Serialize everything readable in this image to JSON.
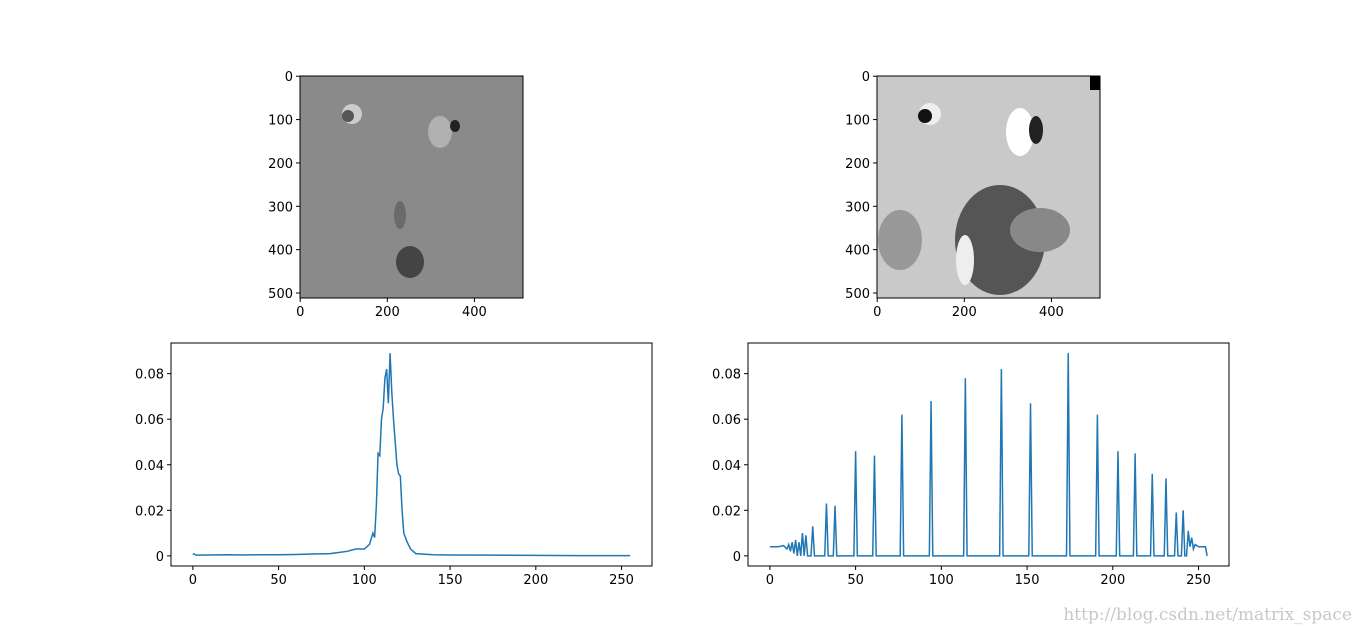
{
  "chart_data": [
    {
      "type": "image",
      "xlim": [
        -0.5,
        511.5
      ],
      "ylim": [
        511.5,
        -0.5
      ],
      "xticks": [
        0,
        200,
        400
      ],
      "yticks": [
        0,
        100,
        200,
        300,
        400,
        500
      ]
    },
    {
      "type": "image",
      "xlim": [
        -0.5,
        511.5
      ],
      "ylim": [
        511.5,
        -0.5
      ],
      "xticks": [
        0,
        200,
        400
      ],
      "yticks": [
        0,
        100,
        200,
        300,
        400,
        500
      ]
    },
    {
      "type": "line",
      "color": "#1f77b4",
      "x": [
        0,
        2,
        10,
        20,
        30,
        40,
        50,
        60,
        70,
        80,
        85,
        90,
        95,
        100,
        103,
        105,
        106,
        107,
        108,
        109,
        110,
        111,
        112,
        113,
        114,
        115,
        116,
        117,
        118,
        119,
        120,
        121,
        122,
        123,
        125,
        127,
        130,
        140,
        150,
        175,
        200,
        225,
        255
      ],
      "values": [
        0.001,
        0.0003,
        0.0004,
        0.0005,
        0.0004,
        0.0005,
        0.0005,
        0.0006,
        0.0008,
        0.001,
        0.0015,
        0.002,
        0.003,
        0.003,
        0.005,
        0.01,
        0.008,
        0.022,
        0.045,
        0.044,
        0.06,
        0.065,
        0.078,
        0.082,
        0.067,
        0.089,
        0.072,
        0.06,
        0.05,
        0.04,
        0.036,
        0.035,
        0.02,
        0.01,
        0.006,
        0.003,
        0.001,
        0.0005,
        0.0004,
        0.0003,
        0.0002,
        0.0001,
        0.0001
      ],
      "xlim": [
        -12.75,
        267.75
      ],
      "ylim": [
        -0.00445,
        0.09345
      ],
      "xticks": [
        0,
        50,
        100,
        150,
        200,
        250
      ],
      "yticks": [
        0,
        0.02,
        0.04,
        0.06,
        0.08
      ]
    },
    {
      "type": "line",
      "color": "#1f77b4",
      "x": [
        0,
        5,
        8,
        10,
        11,
        12,
        13,
        14,
        15,
        16,
        17,
        18,
        19,
        20,
        21,
        22,
        24,
        25,
        26,
        32,
        33,
        34,
        37,
        38,
        39,
        49,
        50,
        51,
        60,
        61,
        62,
        76,
        77,
        78,
        93,
        94,
        95,
        113,
        114,
        115,
        134,
        135,
        136,
        151,
        152,
        153,
        173,
        174,
        175,
        190,
        191,
        192,
        202,
        203,
        204,
        212,
        213,
        214,
        222,
        223,
        224,
        230,
        231,
        232,
        236,
        237,
        238,
        240,
        241,
        242,
        243,
        244,
        245,
        246,
        247,
        248,
        250,
        254,
        255
      ],
      "values": [
        0.004,
        0.004,
        0.0045,
        0.003,
        0.005,
        0.002,
        0.006,
        0.001,
        0.007,
        0,
        0.006,
        0,
        0.01,
        0,
        0.009,
        0,
        0,
        0.013,
        0,
        0,
        0.023,
        0,
        0,
        0.022,
        0,
        0,
        0.046,
        0,
        0,
        0.044,
        0,
        0,
        0.062,
        0,
        0,
        0.068,
        0,
        0,
        0.078,
        0,
        0,
        0.082,
        0,
        0,
        0.067,
        0,
        0,
        0.089,
        0,
        0,
        0.062,
        0,
        0,
        0.046,
        0,
        0,
        0.045,
        0,
        0,
        0.036,
        0,
        0,
        0.034,
        0,
        0,
        0.019,
        0,
        0,
        0.02,
        0,
        0,
        0.011,
        0.004,
        0.008,
        0.003,
        0.005,
        0.004,
        0.004,
        0
      ],
      "xlim": [
        -12.75,
        267.75
      ],
      "ylim": [
        -0.00445,
        0.09345
      ],
      "xticks": [
        0,
        50,
        100,
        150,
        200,
        250
      ],
      "yticks": [
        0,
        0.02,
        0.04,
        0.06,
        0.08
      ]
    }
  ],
  "watermark": "http://blog.csdn.net/matrix_space"
}
